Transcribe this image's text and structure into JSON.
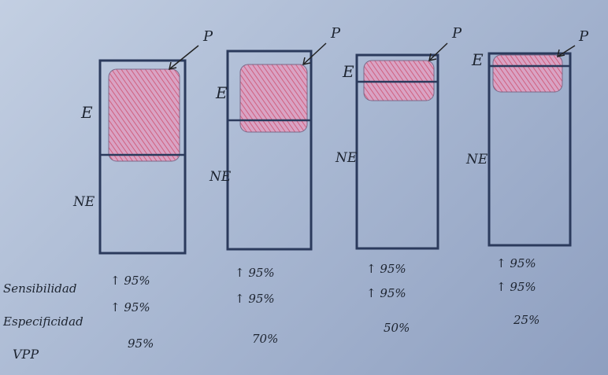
{
  "colors": {
    "ink": "#2b3a5c",
    "prevalence_fill": "#d98aa8",
    "background": "#b0bed6"
  },
  "labels": {
    "enfermos": "E",
    "no_enfermos": "NE",
    "prevalencia": "P"
  },
  "row_labels": [
    "Sensibilidad",
    "Especificidad",
    "VPP"
  ],
  "columns": [
    {
      "sens": "↑ 95%",
      "espec": "↑ 95%",
      "vpp": "95%"
    },
    {
      "sens": "↑ 95%",
      "espec": "↑ 95%",
      "vpp": "70%"
    },
    {
      "sens": "↑ 95%",
      "espec": "↑ 95%",
      "vpp": "50%"
    },
    {
      "sens": "↑ 95%",
      "espec": "↑ 95%",
      "vpp": "25%"
    }
  ]
}
